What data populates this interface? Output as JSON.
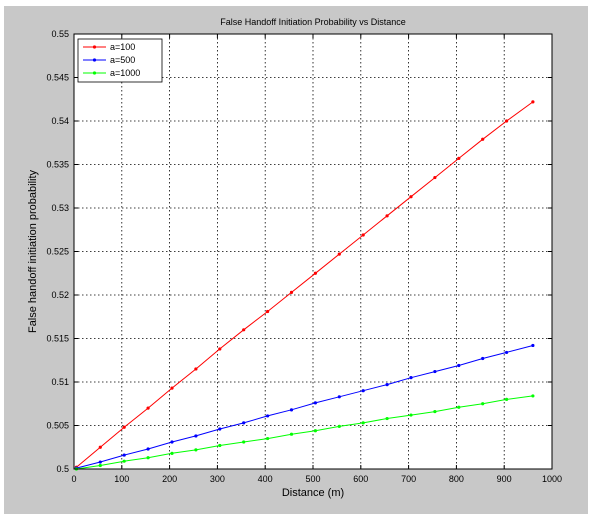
{
  "chart_data": {
    "type": "line",
    "title": "False Handoff Initiation Probability vs Distance",
    "xlabel": "Distance (m)",
    "ylabel": "False handoff initiation probability",
    "xlim": [
      0,
      1000
    ],
    "ylim": [
      0.5,
      0.55
    ],
    "xticks": [
      0,
      100,
      200,
      300,
      400,
      500,
      600,
      700,
      800,
      900,
      1000
    ],
    "yticks": [
      0.5,
      0.505,
      0.51,
      0.515,
      0.52,
      0.525,
      0.53,
      0.535,
      0.54,
      0.545,
      0.55
    ],
    "xtick_labels": [
      "0",
      "100",
      "200",
      "300",
      "400",
      "500",
      "600",
      "700",
      "800",
      "900",
      "1000"
    ],
    "ytick_labels": [
      "0.5",
      "0.505",
      "0.51",
      "0.515",
      "0.52",
      "0.525",
      "0.53",
      "0.535",
      "0.54",
      "0.545",
      "0.55"
    ],
    "grid": true,
    "legend_position": "top-left",
    "x": [
      5,
      55,
      105,
      155,
      205,
      255,
      305,
      355,
      405,
      455,
      505,
      555,
      605,
      655,
      705,
      755,
      805,
      855,
      905,
      960
    ],
    "series": [
      {
        "name": "a=100",
        "color": "#ff0000",
        "values": [
          0.5002,
          0.5025,
          0.5048,
          0.507,
          0.5093,
          0.5115,
          0.5138,
          0.516,
          0.5181,
          0.5203,
          0.5225,
          0.5247,
          0.5269,
          0.5291,
          0.5313,
          0.5335,
          0.5357,
          0.5379,
          0.54,
          0.5422
        ]
      },
      {
        "name": "a=500",
        "color": "#0000ff",
        "values": [
          0.5001,
          0.5008,
          0.5016,
          0.5023,
          0.5031,
          0.5038,
          0.5046,
          0.5053,
          0.5061,
          0.5068,
          0.5076,
          0.5083,
          0.509,
          0.5097,
          0.5105,
          0.5112,
          0.5119,
          0.5127,
          0.5134,
          0.5142
        ]
      },
      {
        "name": "a=1000",
        "color": "#00ff00",
        "values": [
          0.5,
          0.5004,
          0.5009,
          0.5013,
          0.5018,
          0.5022,
          0.5027,
          0.5031,
          0.5035,
          0.504,
          0.5044,
          0.5049,
          0.5053,
          0.5058,
          0.5062,
          0.5066,
          0.5071,
          0.5075,
          0.508,
          0.5084
        ]
      }
    ]
  }
}
